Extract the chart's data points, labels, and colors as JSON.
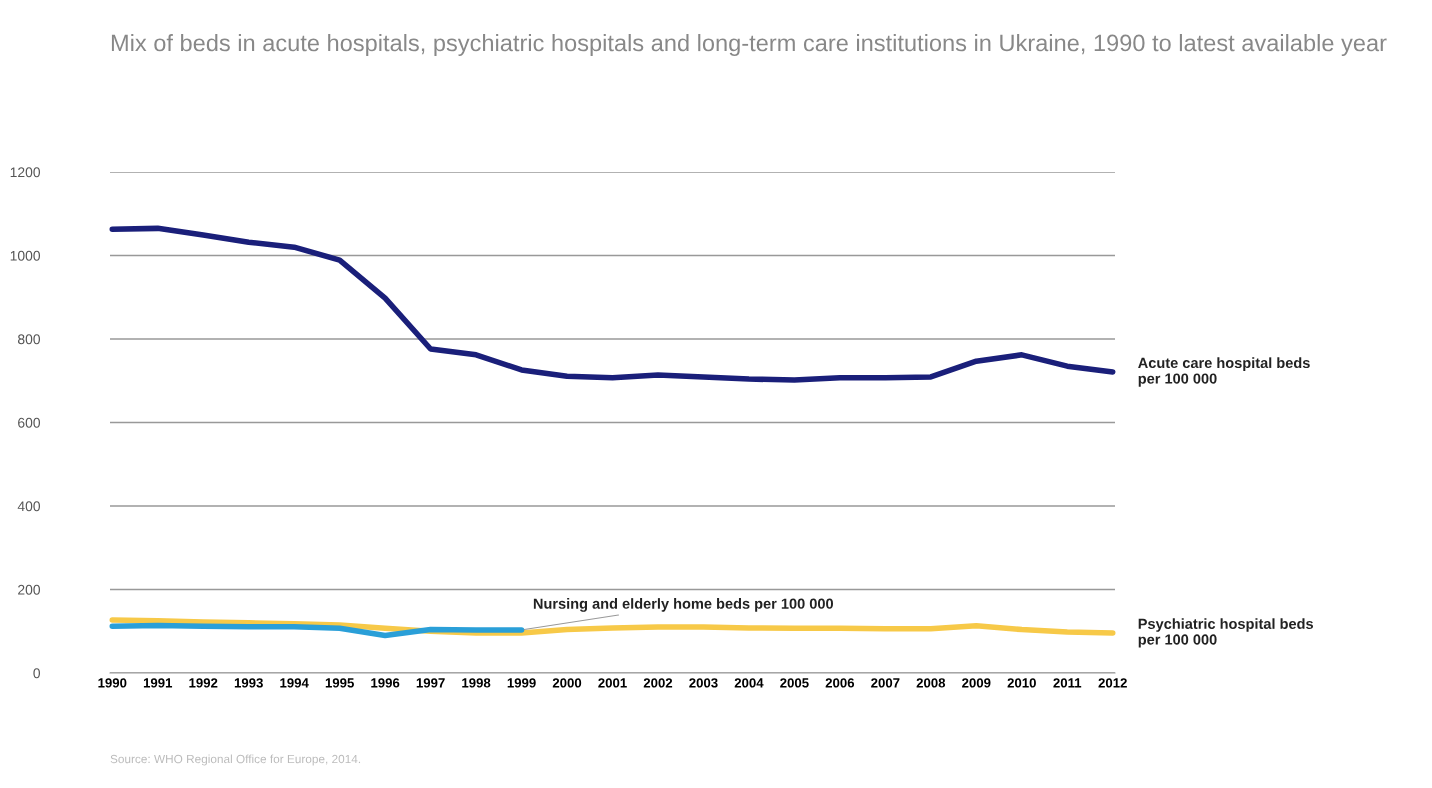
{
  "chart_data": {
    "type": "line",
    "title": "Mix of beds in acute hospitals, psychiatric hospitals and long-term care institutions in Ukraine, 1990 to latest available year",
    "categories": [
      "1990",
      "1991",
      "1992",
      "1993",
      "1994",
      "1995",
      "1996",
      "1997",
      "1998",
      "1999",
      "2000",
      "2001",
      "2002",
      "2003",
      "2004",
      "2005",
      "2006",
      "2007",
      "2008",
      "2009",
      "2010",
      "2011",
      "2012"
    ],
    "series": [
      {
        "name": "Acute care hospital beds per 100 000",
        "color": "#1a1f7a",
        "values": [
          1063,
          1065,
          1049,
          1032,
          1020,
          989,
          898,
          776,
          762,
          726,
          711,
          707,
          714,
          709,
          704,
          702,
          707,
          707,
          709,
          747,
          762,
          735,
          721
        ]
      },
      {
        "name": "Psychiatric hospital beds per 100 000",
        "color": "#f7c948",
        "values": [
          127,
          125,
          122,
          120,
          118,
          115,
          107,
          100,
          96,
          96,
          104,
          108,
          110,
          110,
          108,
          107,
          107,
          106,
          106,
          113,
          104,
          98,
          96
        ]
      },
      {
        "name": "Nursing and elderly home beds per 100 000",
        "color": "#2a9fd8",
        "values": [
          112,
          114,
          112,
          111,
          111,
          107,
          90,
          104,
          103,
          103,
          null,
          null,
          null,
          null,
          null,
          null,
          null,
          null,
          null,
          null,
          null,
          null,
          null
        ]
      }
    ],
    "ylim": [
      0,
      1200
    ],
    "yticks": [
      0,
      200,
      400,
      600,
      800,
      1000,
      1200
    ],
    "grid": "y",
    "legend": false,
    "marker": "none",
    "line_style": "solid",
    "annotations": [
      "Source: WHO Regional Office for Europe, 2014."
    ]
  }
}
